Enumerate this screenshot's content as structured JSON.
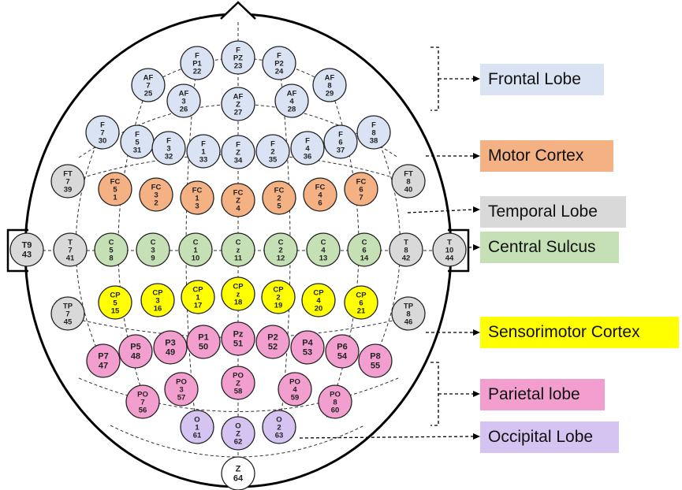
{
  "regions": {
    "frontal": {
      "label": "Frontal Lobe",
      "color": "#dae3f3"
    },
    "motor": {
      "label": "Motor Cortex",
      "color": "#f4b183"
    },
    "temporal": {
      "label": "Temporal Lobe",
      "color": "#d9d9d9"
    },
    "central": {
      "label": "Central Sulcus",
      "color": "#c5e0b4"
    },
    "sensorimotor": {
      "label": "Sensorimotor Cortex",
      "color": "#ffff00"
    },
    "parietal": {
      "label": "Parietal lobe",
      "color": "#f29fd0"
    },
    "occipital": {
      "label": "Occipital Lobe",
      "color": "#d5c3f2"
    },
    "none": {
      "color": "#ffffff"
    }
  },
  "electrodes": [
    {
      "l1": "F",
      "l2": "P1",
      "num": "22",
      "region": "frontal"
    },
    {
      "l1": "F",
      "l2": "PZ",
      "num": "23",
      "region": "frontal"
    },
    {
      "l1": "F",
      "l2": "P2",
      "num": "24",
      "region": "frontal"
    },
    {
      "l1": "AF",
      "l2": "7",
      "num": "25",
      "region": "frontal"
    },
    {
      "l1": "AF",
      "l2": "3",
      "num": "26",
      "region": "frontal"
    },
    {
      "l1": "AF",
      "l2": "Z",
      "num": "27",
      "region": "frontal"
    },
    {
      "l1": "AF",
      "l2": "4",
      "num": "28",
      "region": "frontal"
    },
    {
      "l1": "AF",
      "l2": "8",
      "num": "29",
      "region": "frontal"
    },
    {
      "l1": "F",
      "l2": "7",
      "num": "30",
      "region": "frontal"
    },
    {
      "l1": "F",
      "l2": "5",
      "num": "31",
      "region": "frontal"
    },
    {
      "l1": "F",
      "l2": "3",
      "num": "32",
      "region": "frontal"
    },
    {
      "l1": "F",
      "l2": "1",
      "num": "33",
      "region": "frontal"
    },
    {
      "l1": "F",
      "l2": "Z",
      "num": "34",
      "region": "frontal"
    },
    {
      "l1": "F",
      "l2": "2",
      "num": "35",
      "region": "frontal"
    },
    {
      "l1": "F",
      "l2": "4",
      "num": "36",
      "region": "frontal"
    },
    {
      "l1": "F",
      "l2": "6",
      "num": "37",
      "region": "frontal"
    },
    {
      "l1": "F",
      "l2": "8",
      "num": "38",
      "region": "frontal"
    },
    {
      "l1": "FT",
      "l2": "7",
      "num": "39",
      "region": "temporal"
    },
    {
      "l1": "FC",
      "l2": "5",
      "num": "1",
      "region": "motor"
    },
    {
      "l1": "FC",
      "l2": "3",
      "num": "2",
      "region": "motor"
    },
    {
      "l1": "FC",
      "l2": "1",
      "num": "3",
      "region": "motor"
    },
    {
      "l1": "FC",
      "l2": "Z",
      "num": "4",
      "region": "motor"
    },
    {
      "l1": "FC",
      "l2": "2",
      "num": "5",
      "region": "motor"
    },
    {
      "l1": "FC",
      "l2": "4",
      "num": "6",
      "region": "motor"
    },
    {
      "l1": "FC",
      "l2": "6",
      "num": "7",
      "region": "motor"
    },
    {
      "l1": "FT",
      "l2": "8",
      "num": "40",
      "region": "temporal"
    },
    {
      "l1": "T9",
      "l2": "",
      "num": "43",
      "region": "temporal"
    },
    {
      "l1": "T",
      "l2": "7",
      "num": "41",
      "region": "temporal"
    },
    {
      "l1": "C",
      "l2": "5",
      "num": "8",
      "region": "central"
    },
    {
      "l1": "C",
      "l2": "3",
      "num": "9",
      "region": "central"
    },
    {
      "l1": "C",
      "l2": "1",
      "num": "10",
      "region": "central"
    },
    {
      "l1": "C",
      "l2": "z",
      "num": "11",
      "region": "central"
    },
    {
      "l1": "C",
      "l2": "2",
      "num": "12",
      "region": "central"
    },
    {
      "l1": "C",
      "l2": "4",
      "num": "13",
      "region": "central"
    },
    {
      "l1": "C",
      "l2": "6",
      "num": "14",
      "region": "central"
    },
    {
      "l1": "T",
      "l2": "8",
      "num": "42",
      "region": "temporal"
    },
    {
      "l1": "T",
      "l2": "10",
      "num": "44",
      "region": "temporal"
    },
    {
      "l1": "TP",
      "l2": "7",
      "num": "45",
      "region": "temporal"
    },
    {
      "l1": "CP",
      "l2": "5",
      "num": "15",
      "region": "sensorimotor"
    },
    {
      "l1": "CP",
      "l2": "3",
      "num": "16",
      "region": "sensorimotor"
    },
    {
      "l1": "CP",
      "l2": "1",
      "num": "17",
      "region": "sensorimotor"
    },
    {
      "l1": "CP",
      "l2": "z",
      "num": "18",
      "region": "sensorimotor"
    },
    {
      "l1": "CP",
      "l2": "2",
      "num": "19",
      "region": "sensorimotor"
    },
    {
      "l1": "CP",
      "l2": "4",
      "num": "20",
      "region": "sensorimotor"
    },
    {
      "l1": "CP",
      "l2": "6",
      "num": "21",
      "region": "sensorimotor"
    },
    {
      "l1": "TP",
      "l2": "8",
      "num": "46",
      "region": "temporal"
    },
    {
      "l1": "P7",
      "l2": "",
      "num": "47",
      "region": "parietal"
    },
    {
      "l1": "P5",
      "l2": "",
      "num": "48",
      "region": "parietal"
    },
    {
      "l1": "P3",
      "l2": "",
      "num": "49",
      "region": "parietal"
    },
    {
      "l1": "P1",
      "l2": "",
      "num": "50",
      "region": "parietal"
    },
    {
      "l1": "Pz",
      "l2": "",
      "num": "51",
      "region": "parietal"
    },
    {
      "l1": "P2",
      "l2": "",
      "num": "52",
      "region": "parietal"
    },
    {
      "l1": "P4",
      "l2": "",
      "num": "53",
      "region": "parietal"
    },
    {
      "l1": "P6",
      "l2": "",
      "num": "54",
      "region": "parietal"
    },
    {
      "l1": "P8",
      "l2": "",
      "num": "55",
      "region": "parietal"
    },
    {
      "l1": "PO",
      "l2": "7",
      "num": "56",
      "region": "parietal"
    },
    {
      "l1": "PO",
      "l2": "3",
      "num": "57",
      "region": "parietal"
    },
    {
      "l1": "PO",
      "l2": "Z",
      "num": "58",
      "region": "parietal"
    },
    {
      "l1": "PO",
      "l2": "4",
      "num": "59",
      "region": "parietal"
    },
    {
      "l1": "PO",
      "l2": "8",
      "num": "60",
      "region": "parietal"
    },
    {
      "l1": "O",
      "l2": "1",
      "num": "61",
      "region": "occipital"
    },
    {
      "l1": "O",
      "l2": "Z",
      "num": "62",
      "region": "occipital"
    },
    {
      "l1": "O",
      "l2": "2",
      "num": "63",
      "region": "occipital"
    },
    {
      "l1": "Z",
      "l2": "",
      "num": "64",
      "region": "none"
    }
  ]
}
